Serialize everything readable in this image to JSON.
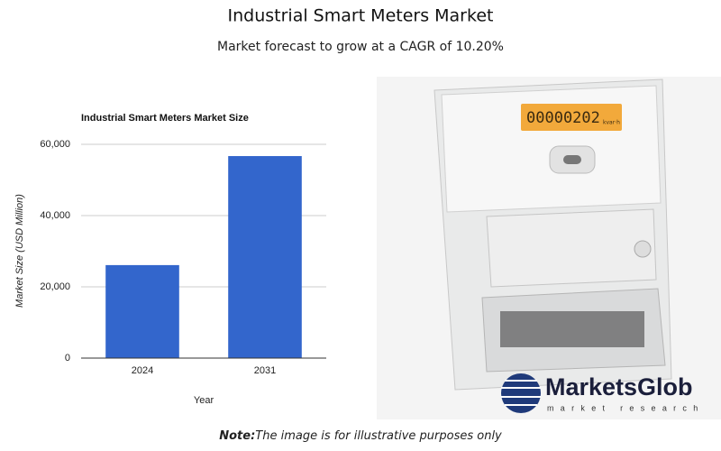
{
  "header": {
    "title": "Industrial Smart Meters Market",
    "subtitle": "Market forecast to grow at a CAGR of 10.20%"
  },
  "chart_data": {
    "type": "bar",
    "title": "Industrial Smart Meters Market Size",
    "x_label": "Year",
    "y_label": "Market Size (USD Million)",
    "categories": [
      "2024",
      "2031"
    ],
    "values": [
      26100,
      56700
    ],
    "color": "#3366cc",
    "ylim": [
      0,
      60000
    ],
    "yticks": [
      0,
      {
        "value": 20000,
        "label": "20,000"
      },
      {
        "value": 40000,
        "label": "40,000"
      },
      {
        "value": 60000,
        "label": "60,000"
      }
    ],
    "grid": true
  },
  "photo": {
    "display_reading": "00000202",
    "display_unit": "kvar·h"
  },
  "logo": {
    "name": "MarketsGlob",
    "tagline": "market research"
  },
  "note": {
    "label": "Note:",
    "text": "The image is for illustrative purposes only"
  }
}
